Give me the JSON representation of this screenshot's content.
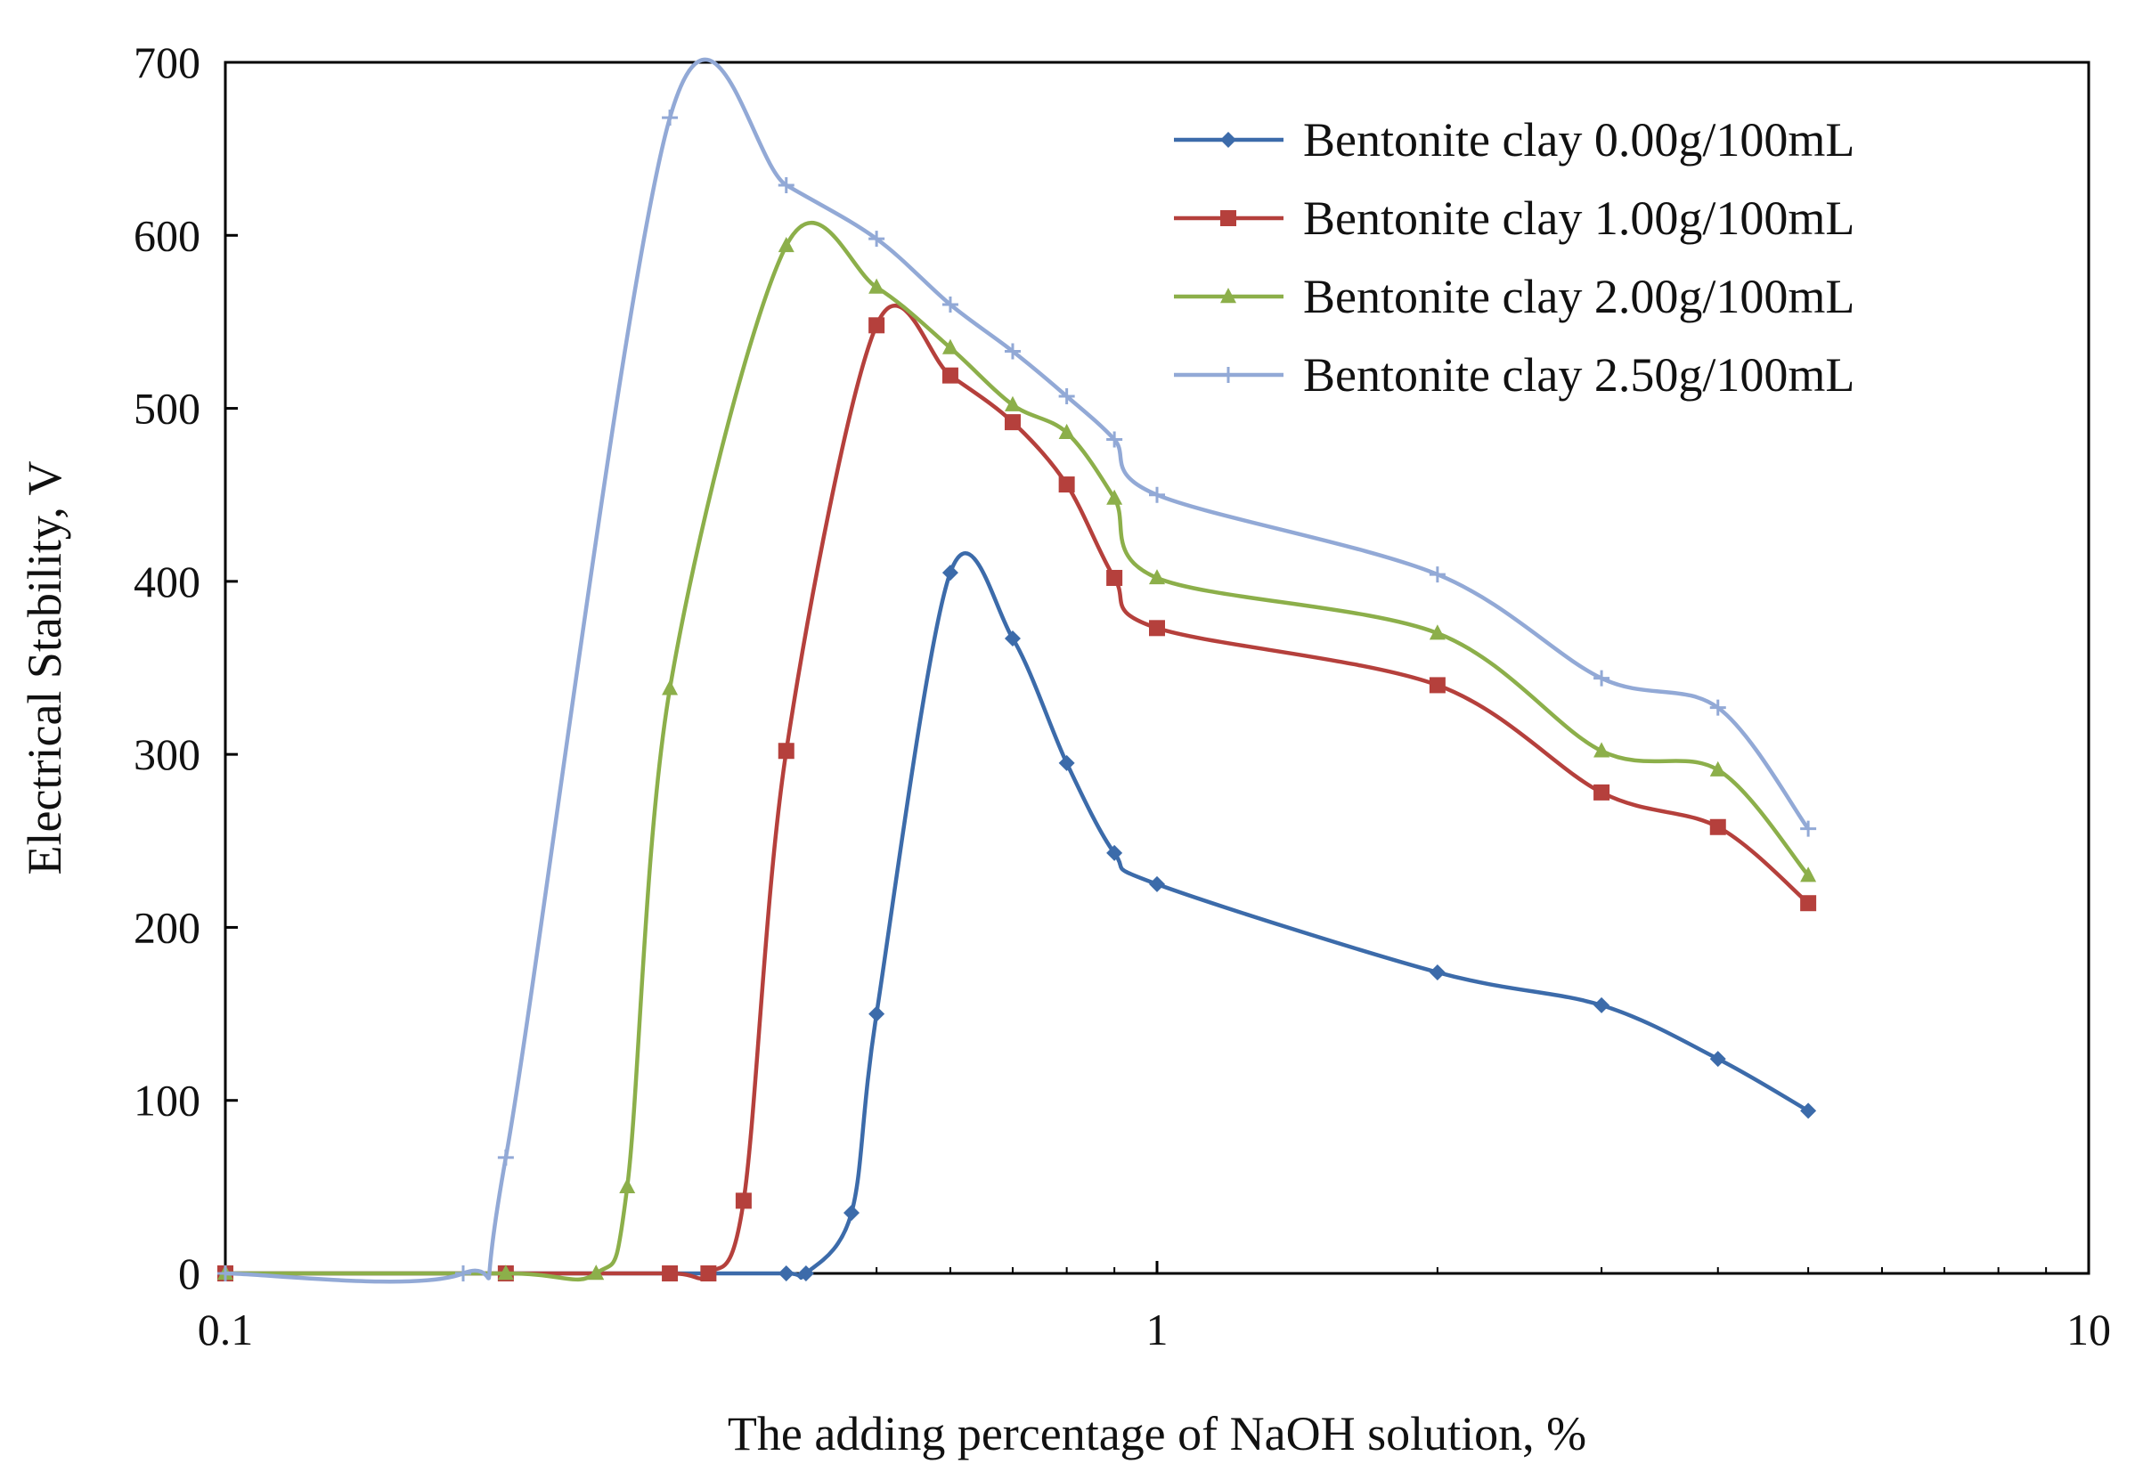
{
  "chart_data": {
    "type": "line",
    "xlabel": "The adding percentage of NaOH solution, %",
    "ylabel": "Electrical Stability, V",
    "xscale": "log",
    "xlim": [
      0.1,
      10
    ],
    "ylim": [
      0,
      700
    ],
    "xticks": [
      0.1,
      1,
      10
    ],
    "xtick_labels": [
      "0.1",
      "1",
      "10"
    ],
    "yticks": [
      0,
      100,
      200,
      300,
      400,
      500,
      600,
      700
    ],
    "ytick_labels": [
      "0",
      "100",
      "200",
      "300",
      "400",
      "500",
      "600",
      "700"
    ],
    "grid": false,
    "legend_position": "top-right",
    "series": [
      {
        "name": "Bentonite clay 0.00g/100mL",
        "color": "#3C6BAA",
        "marker": "diamond",
        "x": [
          0.1,
          0.2,
          0.3,
          0.4,
          0.42,
          0.47,
          0.5,
          0.6,
          0.7,
          0.8,
          0.9,
          1.0,
          2.0,
          3.0,
          4.0,
          5.0
        ],
        "y": [
          0,
          0,
          0,
          0,
          0,
          35,
          150,
          405,
          367,
          295,
          243,
          225,
          174,
          155,
          124,
          94
        ]
      },
      {
        "name": "Bentonite clay 1.00g/100mL",
        "color": "#B5403C",
        "marker": "square",
        "x": [
          0.1,
          0.2,
          0.3,
          0.33,
          0.36,
          0.4,
          0.5,
          0.6,
          0.7,
          0.8,
          0.9,
          1.0,
          2.0,
          3.0,
          4.0,
          5.0
        ],
        "y": [
          0,
          0,
          0,
          0,
          42,
          302,
          548,
          519,
          492,
          456,
          402,
          373,
          340,
          278,
          258,
          214
        ]
      },
      {
        "name": "Bentonite clay 2.00g/100mL",
        "color": "#8CAF4A",
        "marker": "triangle",
        "x": [
          0.1,
          0.2,
          0.25,
          0.27,
          0.3,
          0.4,
          0.5,
          0.6,
          0.7,
          0.8,
          0.9,
          1.0,
          2.0,
          3.0,
          4.0,
          5.0
        ],
        "y": [
          0,
          0,
          0,
          50,
          338,
          594,
          570,
          535,
          502,
          486,
          448,
          402,
          370,
          302,
          291,
          230
        ]
      },
      {
        "name": "Bentonite clay 2.50g/100mL",
        "color": "#92A9D6",
        "marker": "cross",
        "x": [
          0.1,
          0.18,
          0.2,
          0.3,
          0.4,
          0.5,
          0.6,
          0.7,
          0.8,
          0.9,
          1.0,
          2.0,
          3.0,
          4.0,
          5.0
        ],
        "y": [
          0,
          0,
          67,
          668,
          629,
          598,
          560,
          533,
          507,
          482,
          450,
          404,
          344,
          327,
          257
        ]
      }
    ]
  }
}
